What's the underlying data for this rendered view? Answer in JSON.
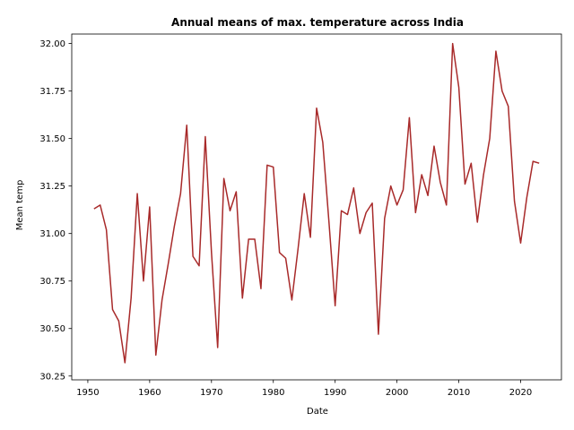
{
  "chart_data": {
    "type": "line",
    "title": "Annual means of max. temperature across India",
    "xlabel": "Date",
    "ylabel": "Mean temp",
    "xlim": [
      1947.4,
      2026.6
    ],
    "ylim": [
      30.23,
      32.05
    ],
    "xticks": [
      1950,
      1960,
      1970,
      1980,
      1990,
      2000,
      2010,
      2020
    ],
    "yticks": [
      "30.25",
      "30.50",
      "30.75",
      "31.00",
      "31.25",
      "31.50",
      "31.75",
      "32.00"
    ],
    "grid": false,
    "colors": {
      "line": "#a82a2a",
      "axes": "#000000",
      "background": "#ffffff"
    },
    "series": [
      {
        "x": [
          1951,
          1952,
          1953,
          1954,
          1955,
          1956,
          1957,
          1958,
          1959,
          1960,
          1961,
          1962,
          1963,
          1964,
          1965,
          1966,
          1967,
          1968,
          1969,
          1970,
          1971,
          1972,
          1973,
          1974,
          1975,
          1976,
          1977,
          1978,
          1979,
          1980,
          1981,
          1982,
          1983,
          1984,
          1985,
          1986,
          1987,
          1988,
          1989,
          1990,
          1991,
          1992,
          1993,
          1994,
          1995,
          1996,
          1997,
          1998,
          1999,
          2000,
          2001,
          2002,
          2003,
          2004,
          2005,
          2006,
          2007,
          2008,
          2009,
          2010,
          2011,
          2012,
          2013,
          2014,
          2015,
          2016,
          2017,
          2018,
          2019,
          2020,
          2021,
          2022,
          2023
        ],
        "values": [
          31.13,
          31.15,
          31.02,
          30.6,
          30.54,
          30.32,
          30.66,
          31.21,
          30.75,
          31.14,
          30.36,
          30.65,
          30.84,
          31.04,
          31.21,
          31.57,
          30.88,
          30.83,
          31.51,
          30.9,
          30.4,
          31.29,
          31.12,
          31.22,
          30.66,
          30.97,
          30.97,
          30.71,
          31.36,
          31.35,
          30.9,
          30.87,
          30.65,
          30.92,
          31.21,
          30.98,
          31.66,
          31.48,
          31.06,
          30.62,
          31.12,
          31.1,
          31.24,
          31.0,
          31.11,
          31.16,
          30.47,
          31.08,
          31.25,
          31.15,
          31.23,
          31.61,
          31.11,
          31.31,
          31.2,
          31.46,
          31.27,
          31.15,
          32.0,
          31.77,
          31.26,
          31.37,
          31.06,
          31.31,
          31.5,
          31.96,
          31.75,
          31.67,
          31.17,
          30.95,
          31.19,
          31.38,
          31.37
        ]
      }
    ]
  }
}
